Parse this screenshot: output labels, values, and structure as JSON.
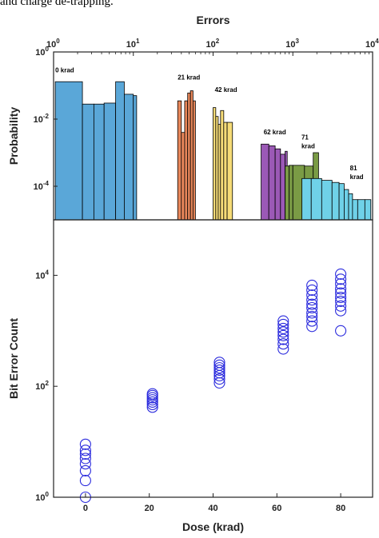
{
  "caption": "and charge de-trapping.",
  "colors": {
    "d0": "#5aa7d8",
    "d21": "#e8875a",
    "d42": "#f6dc78",
    "d62": "#9b59b6",
    "d71": "#7a9b45",
    "d81": "#6fd1e8",
    "marker": "#2a2add"
  },
  "chart_data": [
    {
      "type": "bar",
      "name": "histogram",
      "xlabel": "Errors",
      "ylabel": "Probability",
      "xscale": "log",
      "yscale": "log",
      "xlim": [
        1,
        10000
      ],
      "ylim": [
        1e-05,
        1
      ],
      "xticks": [
        {
          "base": "10",
          "exp": "0"
        },
        {
          "base": "10",
          "exp": "1"
        },
        {
          "base": "10",
          "exp": "2"
        },
        {
          "base": "10",
          "exp": "3"
        },
        {
          "base": "10",
          "exp": "4"
        }
      ],
      "yticks": [
        {
          "base": "10",
          "exp": "0"
        },
        {
          "base": "10",
          "exp": "-2"
        },
        {
          "base": "10",
          "exp": "-4"
        }
      ],
      "groups": [
        {
          "label": "0 krad",
          "colorKey": "d0",
          "annot_x": 1.05,
          "annot_y": 0.25,
          "bars": [
            [
              1.05,
              2.3,
              0.13
            ],
            [
              2.3,
              3.2,
              0.028
            ],
            [
              3.2,
              4.3,
              0.028
            ],
            [
              4.3,
              6.0,
              0.03
            ],
            [
              6.0,
              7.7,
              0.13
            ],
            [
              7.7,
              10.0,
              0.055
            ],
            [
              10.0,
              11.0,
              0.05
            ]
          ]
        },
        {
          "label": "21 krad",
          "colorKey": "d21",
          "annot_x": 36,
          "annot_y": 0.15,
          "bars": [
            [
              36,
              40,
              0.035
            ],
            [
              40,
              44,
              0.004
            ],
            [
              44,
              48,
              0.035
            ],
            [
              48,
              52,
              0.06
            ],
            [
              52,
              56,
              0.07
            ],
            [
              56,
              60,
              0.035
            ]
          ]
        },
        {
          "label": "42 krad",
          "colorKey": "d42",
          "annot_x": 105,
          "annot_y": 0.065,
          "bars": [
            [
              100,
              108,
              0.022
            ],
            [
              108,
              116,
              0.012
            ],
            [
              116,
              124,
              0.007
            ],
            [
              124,
              136,
              0.018
            ],
            [
              136,
              150,
              0.008
            ],
            [
              150,
              175,
              0.008
            ]
          ]
        },
        {
          "label": "62 krad",
          "colorKey": "d62",
          "annot_x": 430,
          "annot_y": 0.0035,
          "bars": [
            [
              400,
              500,
              0.0018
            ],
            [
              500,
              600,
              0.0016
            ],
            [
              600,
              700,
              0.0013
            ],
            [
              700,
              800,
              0.0009
            ],
            [
              800,
              850,
              0.0011
            ]
          ]
        },
        {
          "label": "71 krad",
          "colorKey": "d71",
          "annot_x": 1280,
          "annot_y": 0.0025,
          "bars": [
            [
              800,
              900,
              0.0004
            ],
            [
              900,
              1000,
              0.00042
            ],
            [
              1000,
              1400,
              0.00042
            ],
            [
              1400,
              1800,
              0.0004
            ],
            [
              1800,
              2100,
              0.001
            ],
            [
              2100,
              3200,
              0.00012
            ]
          ]
        },
        {
          "label": "81 krad",
          "colorKey": "d81",
          "annot_x": 5200,
          "annot_y": 0.0003,
          "bars": [
            [
              1300,
              1700,
              0.00017
            ],
            [
              1700,
              2300,
              0.00017
            ],
            [
              2300,
              3100,
              0.00015
            ],
            [
              3100,
              3800,
              0.00013
            ],
            [
              3800,
              4400,
              0.00012
            ],
            [
              4400,
              5000,
              8e-05
            ],
            [
              5000,
              5600,
              6e-05
            ],
            [
              5600,
              6500,
              4e-05
            ],
            [
              6500,
              8000,
              4e-05
            ],
            [
              8000,
              9500,
              4e-05
            ]
          ]
        }
      ]
    },
    {
      "type": "scatter",
      "name": "bit-error-count",
      "xlabel": "Dose (krad)",
      "ylabel": "Bit Error Count",
      "yscale": "log",
      "xlim": [
        -10,
        90
      ],
      "ylim": [
        1,
        100000
      ],
      "xticks": [
        "0",
        "20",
        "40",
        "60",
        "80"
      ],
      "xtick_values": [
        0,
        20,
        40,
        60,
        80
      ],
      "yticks": [
        {
          "base": "10",
          "exp": "0",
          "value": 1
        },
        {
          "base": "10",
          "exp": "2",
          "value": 100
        },
        {
          "base": "10",
          "exp": "4",
          "value": 10000
        }
      ],
      "series": [
        {
          "x": 0,
          "y": [
            1,
            2,
            3,
            4,
            5,
            6,
            7,
            9
          ]
        },
        {
          "x": 21,
          "y": [
            42,
            47,
            52,
            57,
            62,
            68,
            73
          ]
        },
        {
          "x": 42,
          "y": [
            115,
            135,
            155,
            175,
            195,
            215,
            240,
            270
          ]
        },
        {
          "x": 62,
          "y": [
            470,
            580,
            700,
            820,
            950,
            1100,
            1300,
            1500
          ]
        },
        {
          "x": 71,
          "y": [
            1200,
            1500,
            1800,
            2100,
            2600,
            3000,
            3600,
            4400,
            5400,
            6600
          ]
        },
        {
          "x": 80,
          "y": [
            1000,
            2300,
            2800,
            3400,
            4000,
            4800,
            5700,
            7000,
            8500,
            10500
          ]
        }
      ]
    }
  ]
}
